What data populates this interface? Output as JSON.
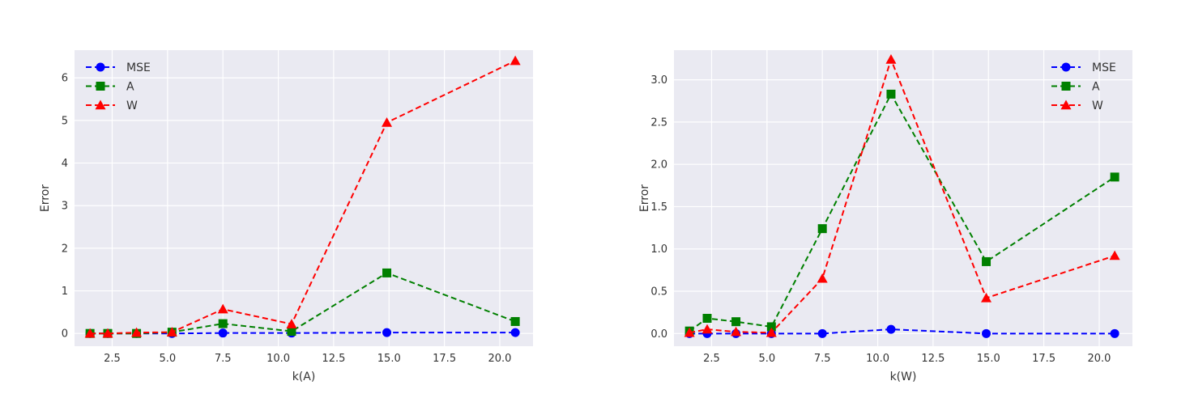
{
  "chart_data": [
    {
      "type": "line",
      "xlabel": "k(A)",
      "ylabel": "Error",
      "xlim": [
        0.8,
        21.5
      ],
      "ylim": [
        -0.3,
        6.65
      ],
      "xticks": [
        2.5,
        5.0,
        7.5,
        10.0,
        12.5,
        15.0,
        17.5,
        20.0
      ],
      "xtick_labels": [
        "2.5",
        "5.0",
        "7.5",
        "10.0",
        "12.5",
        "15.0",
        "17.5",
        "20.0"
      ],
      "yticks": [
        0,
        1,
        2,
        3,
        4,
        5,
        6
      ],
      "ytick_labels": [
        "0",
        "1",
        "2",
        "3",
        "4",
        "5",
        "6"
      ],
      "grid": true,
      "legend_position": "top-left",
      "x": [
        1.5,
        2.3,
        3.6,
        5.2,
        7.5,
        10.6,
        14.9,
        20.7
      ],
      "series": [
        {
          "name": "MSE",
          "color": "#0000ff",
          "marker": "circle",
          "values": [
            0.0,
            0.0,
            0.0,
            0.0,
            0.01,
            0.01,
            0.02,
            0.02
          ]
        },
        {
          "name": "A",
          "color": "#008000",
          "marker": "square",
          "values": [
            0.0,
            0.0,
            0.0,
            0.03,
            0.23,
            0.05,
            1.42,
            0.28
          ]
        },
        {
          "name": "W",
          "color": "#ff0000",
          "marker": "triangle",
          "values": [
            0.0,
            0.0,
            0.02,
            0.03,
            0.57,
            0.22,
            4.95,
            6.4
          ]
        }
      ]
    },
    {
      "type": "line",
      "xlabel": "k(W)",
      "ylabel": "Error",
      "xlim": [
        0.8,
        21.5
      ],
      "ylim": [
        -0.15,
        3.35
      ],
      "xticks": [
        2.5,
        5.0,
        7.5,
        10.0,
        12.5,
        15.0,
        17.5,
        20.0
      ],
      "xtick_labels": [
        "2.5",
        "5.0",
        "7.5",
        "10.0",
        "12.5",
        "15.0",
        "17.5",
        "20.0"
      ],
      "yticks": [
        0.0,
        0.5,
        1.0,
        1.5,
        2.0,
        2.5,
        3.0
      ],
      "ytick_labels": [
        "0.0",
        "0.5",
        "1.0",
        "1.5",
        "2.0",
        "2.5",
        "3.0"
      ],
      "grid": true,
      "legend_position": "top-right",
      "x": [
        1.5,
        2.3,
        3.6,
        5.2,
        7.5,
        10.6,
        14.9,
        20.7
      ],
      "series": [
        {
          "name": "MSE",
          "color": "#0000ff",
          "marker": "circle",
          "values": [
            0.0,
            0.0,
            0.0,
            0.0,
            0.0,
            0.05,
            0.0,
            0.0
          ]
        },
        {
          "name": "A",
          "color": "#008000",
          "marker": "square",
          "values": [
            0.03,
            0.18,
            0.14,
            0.08,
            1.24,
            2.83,
            0.85,
            1.85
          ]
        },
        {
          "name": "W",
          "color": "#ff0000",
          "marker": "triangle",
          "values": [
            0.01,
            0.05,
            0.02,
            0.01,
            0.65,
            3.24,
            0.42,
            0.92
          ]
        }
      ]
    }
  ]
}
